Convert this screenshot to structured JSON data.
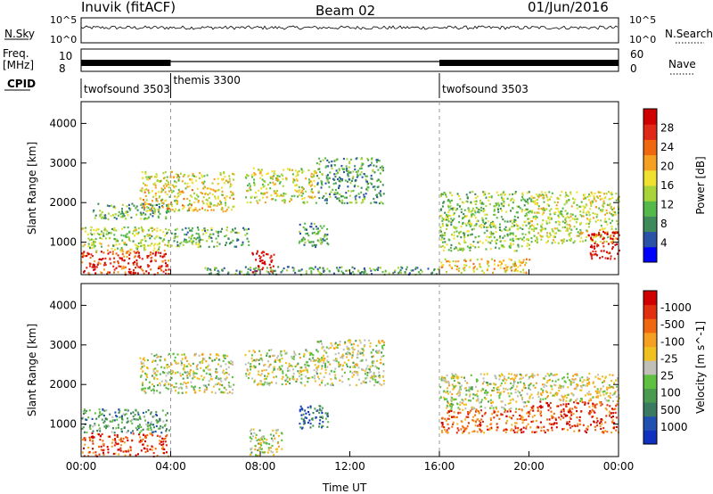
{
  "header": {
    "station": "Inuvik (fitACF)",
    "beam": "Beam 02",
    "date": "01/Jun/2016"
  },
  "status_panels": {
    "nsky_label": "N.Sky",
    "nsearch_label": "N.Search",
    "nsky_ticks": [
      "10^5",
      "10^0"
    ],
    "nsearch_ticks": [
      "10^5",
      "10^0"
    ],
    "freq_label_1": "Freq.",
    "freq_label_2": "[MHz]",
    "freq_ticks": [
      "10",
      "8"
    ],
    "nave_label": "Nave",
    "nave_ticks": [
      "60",
      "0"
    ],
    "cpid_label": "CPID",
    "cpid_segments": [
      {
        "name": "twofsound 3503",
        "start_h": 0,
        "end_h": 4
      },
      {
        "name": "themis 3300",
        "start_h": 4,
        "end_h": 16
      },
      {
        "name": "twofsound 3503",
        "start_h": 16,
        "end_h": 24
      }
    ]
  },
  "chart_data": [
    {
      "type": "heatmap",
      "title": "",
      "ylabel": "Slant Range [km]",
      "xlabel": "",
      "x_ticks": [
        "00:00",
        "04:00",
        "08:00",
        "12:00",
        "16:00",
        "20:00",
        "00:00"
      ],
      "xlim_hours": [
        0,
        24
      ],
      "y_ticks": [
        1000,
        2000,
        3000,
        4000
      ],
      "ylim": [
        180,
        4550
      ],
      "colorbar": {
        "label": "Power [dB]",
        "ticks": [
          "4",
          "8",
          "12",
          "16",
          "20",
          "24",
          "28"
        ],
        "colors": [
          "#0000ff",
          "#2a52a6",
          "#3e8a5a",
          "#55b84a",
          "#a8d43a",
          "#f0e030",
          "#f5a020",
          "#ef6810",
          "#e02818",
          "#d00000"
        ]
      },
      "bands": [
        {
          "h0": 0.0,
          "h1": 3.9,
          "r0": 200,
          "r1": 800,
          "v": 0.85
        },
        {
          "h0": 0.0,
          "h1": 3.9,
          "r0": 800,
          "r1": 1400,
          "v": 0.45
        },
        {
          "h0": 0.5,
          "h1": 3.9,
          "r0": 1600,
          "r1": 2000,
          "v": 0.35
        },
        {
          "h0": 2.6,
          "h1": 6.8,
          "r0": 1800,
          "r1": 2800,
          "v": 0.55
        },
        {
          "h0": 4.0,
          "h1": 7.5,
          "r0": 900,
          "r1": 1400,
          "v": 0.35
        },
        {
          "h0": 7.3,
          "h1": 10.5,
          "r0": 2000,
          "r1": 2900,
          "v": 0.5
        },
        {
          "h0": 7.6,
          "h1": 8.6,
          "r0": 250,
          "r1": 800,
          "v": 0.98
        },
        {
          "h0": 9.7,
          "h1": 11.0,
          "r0": 900,
          "r1": 1500,
          "v": 0.3
        },
        {
          "h0": 10.5,
          "h1": 13.5,
          "r0": 2000,
          "r1": 3150,
          "v": 0.3
        },
        {
          "h0": 5.5,
          "h1": 16.0,
          "r0": 200,
          "r1": 400,
          "v": 0.3
        },
        {
          "h0": 16.0,
          "h1": 20.0,
          "r0": 800,
          "r1": 2300,
          "v": 0.4
        },
        {
          "h0": 16.0,
          "h1": 20.0,
          "r0": 250,
          "r1": 600,
          "v": 0.6
        },
        {
          "h0": 20.0,
          "h1": 24.0,
          "r0": 1000,
          "r1": 2300,
          "v": 0.5
        },
        {
          "h0": 22.6,
          "h1": 24.0,
          "r0": 600,
          "r1": 1300,
          "v": 0.95
        }
      ]
    },
    {
      "type": "heatmap",
      "title": "",
      "ylabel": "Slant Range [km]",
      "xlabel": "Time UT",
      "x_ticks": [
        "00:00",
        "04:00",
        "08:00",
        "12:00",
        "16:00",
        "20:00",
        "00:00"
      ],
      "xlim_hours": [
        0,
        24
      ],
      "y_ticks": [
        1000,
        2000,
        3000,
        4000
      ],
      "ylim": [
        180,
        4550
      ],
      "colorbar": {
        "label": "Velocity [m s^-1]",
        "ticks": [
          "1000",
          "500",
          "100",
          "25",
          "-25",
          "-100",
          "-500",
          "-1000"
        ],
        "colors": [
          "#1030c0",
          "#2050b0",
          "#3a7a60",
          "#4a9a50",
          "#60c040",
          "#c0c0b8",
          "#f0c020",
          "#f5a020",
          "#ef6810",
          "#e03010",
          "#d00000"
        ]
      },
      "bands": [
        {
          "h0": 0.0,
          "h1": 3.9,
          "r0": 200,
          "r1": 800,
          "v": 0.85
        },
        {
          "h0": 0.0,
          "h1": 3.9,
          "r0": 800,
          "r1": 1400,
          "v": 0.3
        },
        {
          "h0": 2.6,
          "h1": 6.8,
          "r0": 1800,
          "r1": 2800,
          "v": 0.5
        },
        {
          "h0": 7.3,
          "h1": 10.5,
          "r0": 2000,
          "r1": 2900,
          "v": 0.5
        },
        {
          "h0": 7.5,
          "h1": 9.0,
          "r0": 200,
          "r1": 900,
          "v": 0.5
        },
        {
          "h0": 9.7,
          "h1": 11.0,
          "r0": 900,
          "r1": 1500,
          "v": 0.2
        },
        {
          "h0": 10.5,
          "h1": 13.5,
          "r0": 2000,
          "r1": 3150,
          "v": 0.5
        },
        {
          "h0": 16.0,
          "h1": 20.0,
          "r0": 800,
          "r1": 1400,
          "v": 0.8
        },
        {
          "h0": 16.0,
          "h1": 20.0,
          "r0": 1400,
          "r1": 2300,
          "v": 0.5
        },
        {
          "h0": 20.0,
          "h1": 24.0,
          "r0": 800,
          "r1": 1600,
          "v": 0.85
        },
        {
          "h0": 20.0,
          "h1": 24.0,
          "r0": 1600,
          "r1": 2300,
          "v": 0.55
        }
      ]
    }
  ]
}
